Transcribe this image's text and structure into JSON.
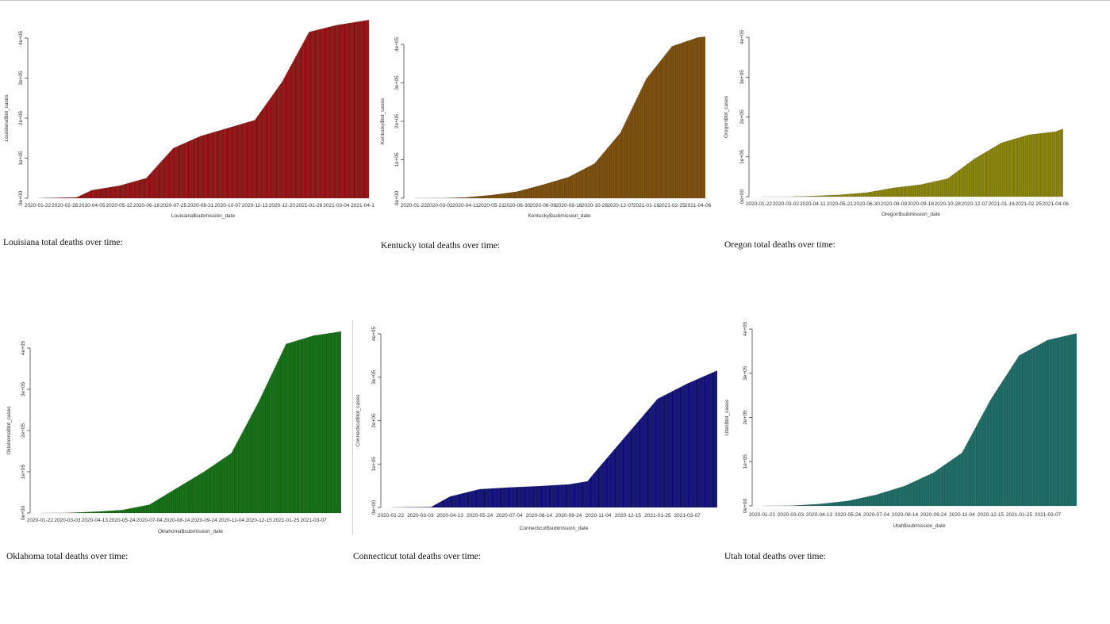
{
  "chart_data": [
    {
      "type": "bar",
      "fill": "#a30d0d",
      "xlabel": "Louisiana$submission_date",
      "ylabel": "Louisiana$tot_cases",
      "ylim": [
        0,
        400000
      ],
      "y_ticks": [
        "0e+00",
        "1e+05",
        "2e+05",
        "3e+05",
        "4e+05"
      ],
      "x_ticks": [
        "2020-01-22",
        "2020-02-28",
        "2020-04-05",
        "2020-05-12",
        "2020-06-18",
        "2020-07-25",
        "2020-08-31",
        "2020-10-07",
        "2020-11-13",
        "2020-12-20",
        "2021-01-26",
        "2021-03-04",
        "2021-04-1"
      ],
      "x_domain": [
        "2020-01-22",
        "2021-04-17"
      ],
      "x": [
        "2020-01-22",
        "2020-03-15",
        "2020-04-05",
        "2020-05-12",
        "2020-06-18",
        "2020-07-25",
        "2020-08-31",
        "2020-10-07",
        "2020-11-13",
        "2020-12-20",
        "2021-01-26",
        "2021-03-04",
        "2021-04-17"
      ],
      "y": [
        0,
        2000,
        20000,
        31000,
        50000,
        125000,
        155000,
        175000,
        195000,
        290000,
        415000,
        432000,
        445000
      ],
      "caption": "Louisiana total deaths over time:"
    },
    {
      "type": "bar",
      "fill": "#8a5200",
      "xlabel": "Kentucky$submission_date",
      "ylabel": "Kentucky$tot_cases",
      "ylim": [
        0,
        400000
      ],
      "y_ticks": [
        "0e+00",
        "1e+05",
        "2e+05",
        "3e+05",
        "4e+05"
      ],
      "x_ticks": [
        "2020-01-22",
        "2020-03-02",
        "2020-04-11",
        "2020-05-21",
        "2020-06-30",
        "2020-08-09",
        "2020-09-18",
        "2020-10-28",
        "2020-12-07",
        "2021-01-16",
        "2021-02-25",
        "2021-04-06"
      ],
      "x_domain": [
        "2020-01-22",
        "2021-04-17"
      ],
      "x": [
        "2020-01-22",
        "2020-03-10",
        "2020-04-11",
        "2020-05-21",
        "2020-06-30",
        "2020-08-09",
        "2020-09-18",
        "2020-10-28",
        "2020-12-07",
        "2021-01-16",
        "2021-02-25",
        "2021-04-06",
        "2021-04-17"
      ],
      "y": [
        0,
        300,
        2000,
        8000,
        17000,
        35000,
        55000,
        90000,
        170000,
        310000,
        395000,
        418000,
        420000
      ],
      "caption": "Kentucky total deaths over time:"
    },
    {
      "type": "bar",
      "fill": "#9a9400",
      "xlabel": "Oregon$submission_date",
      "ylabel": "Oregon$tot_cases",
      "ylim": [
        0,
        400000
      ],
      "y_ticks": [
        "0e+00",
        "1e+05",
        "2e+05",
        "3e+05",
        "4e+05"
      ],
      "x_ticks": [
        "2020-01-22",
        "2020-03-02",
        "2020-04-11",
        "2020-05-21",
        "2020-06-30",
        "2020-08-09",
        "2020-09-18",
        "2020-10-28",
        "2020-12-07",
        "2021-01-16",
        "2021-02-25",
        "2021-04-06"
      ],
      "x_domain": [
        "2020-01-22",
        "2021-04-17"
      ],
      "x": [
        "2020-01-22",
        "2020-03-10",
        "2020-04-11",
        "2020-05-21",
        "2020-06-30",
        "2020-08-09",
        "2020-09-18",
        "2020-10-28",
        "2020-12-07",
        "2021-01-16",
        "2021-02-25",
        "2021-04-06",
        "2021-04-17"
      ],
      "y": [
        0,
        100,
        1500,
        4500,
        10000,
        22000,
        30000,
        45000,
        95000,
        135000,
        155000,
        163000,
        170000
      ],
      "caption": "Oregon total deaths over time:"
    },
    {
      "type": "bar",
      "fill": "#0b7a0b",
      "xlabel": "Oklahoma$submission_date",
      "ylabel": "Oklahoma$tot_cases",
      "ylim": [
        0,
        400000
      ],
      "y_ticks": [
        "0e+00",
        "1e+05",
        "2e+05",
        "3e+05",
        "4e+05"
      ],
      "x_ticks": [
        "2020-01-22",
        "2020-03-03",
        "2020-04-13",
        "2020-05-24",
        "2020-07-04",
        "2020-08-14",
        "2020-09-24",
        "2020-11-04",
        "2020-12-15",
        "2021-01-25",
        "2021-03-07"
      ],
      "x_domain": [
        "2020-01-22",
        "2021-04-17"
      ],
      "x": [
        "2020-01-22",
        "2020-03-03",
        "2020-04-13",
        "2020-05-24",
        "2020-07-04",
        "2020-08-14",
        "2020-09-24",
        "2020-11-04",
        "2020-12-15",
        "2021-01-25",
        "2021-03-07",
        "2021-04-17"
      ],
      "y": [
        0,
        200,
        3000,
        7000,
        20000,
        60000,
        100000,
        145000,
        270000,
        410000,
        430000,
        440000
      ],
      "caption": "Oklahoma total deaths over time:"
    },
    {
      "type": "bar",
      "fill": "#0a0a85",
      "xlabel": "Connecticut$submission_date",
      "ylabel": "Connecticut$tot_cases",
      "ylim": [
        0,
        400000
      ],
      "y_ticks": [
        "0e+00",
        "1e+05",
        "2e+05",
        "3e+05",
        "4e+05"
      ],
      "x_ticks": [
        "2020-01-22",
        "2020-03-03",
        "2020-04-13",
        "2020-05-24",
        "2020-07-04",
        "2020-08-14",
        "2020-09-24",
        "2020-11-04",
        "2020-12-15",
        "2021-01-25",
        "2021-03-07"
      ],
      "x_domain": [
        "2020-01-22",
        "2021-04-17"
      ],
      "x": [
        "2020-01-22",
        "2020-03-18",
        "2020-04-13",
        "2020-05-24",
        "2020-07-04",
        "2020-08-14",
        "2020-09-24",
        "2020-10-20",
        "2020-11-04",
        "2020-12-15",
        "2021-01-25",
        "2021-03-07",
        "2021-04-17"
      ],
      "y": [
        0,
        1000,
        25000,
        42000,
        46000,
        49000,
        53000,
        60000,
        90000,
        170000,
        250000,
        285000,
        315000
      ],
      "caption": "Connecticut total deaths over time:"
    },
    {
      "type": "bar",
      "fill": "#17756e",
      "xlabel": "Utah$submission_date",
      "ylabel": "Utah$tot_cases",
      "ylim": [
        0,
        400000
      ],
      "y_ticks": [
        "0e+00",
        "1e+05",
        "2e+05",
        "3e+05",
        "4e+05"
      ],
      "x_ticks": [
        "2020-01-22",
        "2020-03-03",
        "2020-04-13",
        "2020-05-24",
        "2020-07-04",
        "2020-08-14",
        "2020-09-24",
        "2020-11-04",
        "2020-12-15",
        "2021-01-25",
        "2021-03-07"
      ],
      "x_domain": [
        "2020-01-22",
        "2021-04-17"
      ],
      "x": [
        "2020-01-22",
        "2020-03-03",
        "2020-04-13",
        "2020-05-24",
        "2020-07-04",
        "2020-08-14",
        "2020-09-24",
        "2020-11-04",
        "2020-12-15",
        "2021-01-25",
        "2021-03-07",
        "2021-04-17"
      ],
      "y": [
        0,
        300,
        4000,
        11000,
        25000,
        45000,
        75000,
        120000,
        240000,
        340000,
        375000,
        390000
      ],
      "caption": "Utah total deaths over time:"
    }
  ]
}
